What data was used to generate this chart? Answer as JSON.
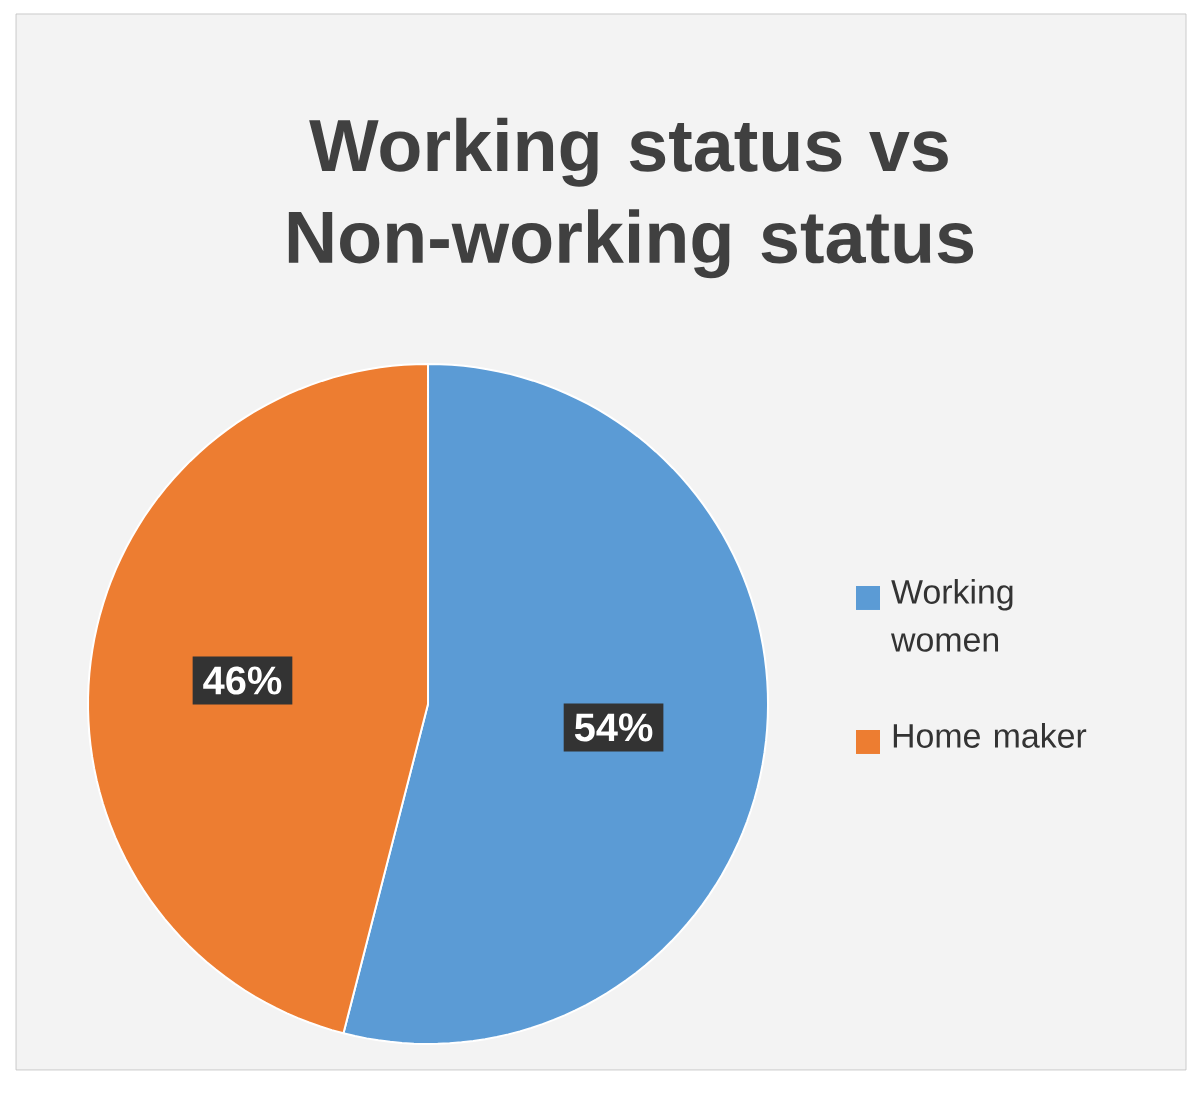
{
  "chart_data": {
    "type": "pie",
    "title": "Working status vs Non-working status",
    "categories": [
      "Working women",
      "Home maker"
    ],
    "values": [
      54,
      46
    ],
    "colors": [
      "#5b9bd5",
      "#ed7d31"
    ],
    "value_labels": [
      "54%",
      "46%"
    ],
    "legend": "right"
  }
}
